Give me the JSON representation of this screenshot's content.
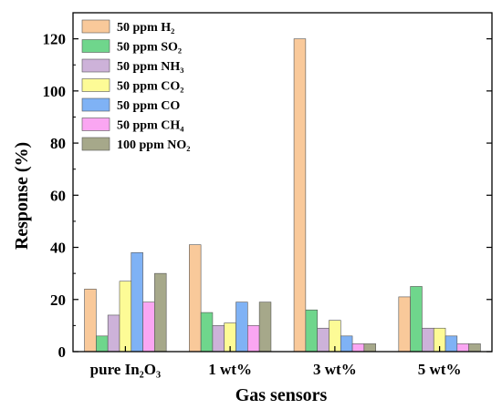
{
  "chart_data": {
    "type": "bar",
    "title": "",
    "xlabel": "Gas sensors",
    "ylabel": "Response (%)",
    "ylim": [
      0,
      130
    ],
    "yticks": [
      0,
      20,
      40,
      60,
      80,
      100,
      120
    ],
    "categories": [
      "pure In₂O₃",
      "1 wt%",
      "3 wt%",
      "5 wt%"
    ],
    "grid": false,
    "legend_position": "top-left",
    "series": [
      {
        "name": "50 ppm H₂",
        "color": "#F9C99A",
        "values": [
          24,
          41,
          120,
          21
        ]
      },
      {
        "name": "50 ppm SO₂",
        "color": "#6FD68C",
        "values": [
          6,
          15,
          16,
          25
        ]
      },
      {
        "name": "50 ppm NH₃",
        "color": "#CDB2D9",
        "values": [
          14,
          10,
          9,
          9
        ]
      },
      {
        "name": "50 ppm CO₂",
        "color": "#FDFB96",
        "values": [
          27,
          11,
          12,
          9
        ]
      },
      {
        "name": "50 ppm CO",
        "color": "#7FB2F5",
        "values": [
          38,
          19,
          6,
          6
        ]
      },
      {
        "name": "50 ppm CH₄",
        "color": "#FAA6F2",
        "values": [
          19,
          10,
          3,
          3
        ]
      },
      {
        "name": "100 ppm NO₂",
        "color": "#A6A88A",
        "values": [
          30,
          19,
          3,
          3
        ]
      }
    ]
  }
}
